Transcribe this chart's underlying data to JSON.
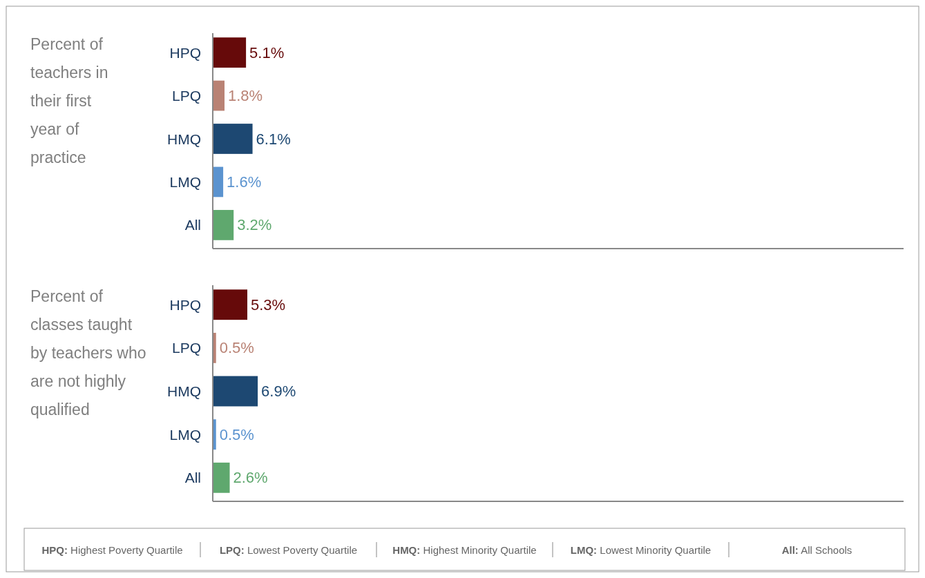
{
  "chart_data": [
    {
      "type": "bar",
      "orientation": "horizontal",
      "title": "Percent of teachers in their first year of practice",
      "categories": [
        "HPQ",
        "LPQ",
        "HMQ",
        "LMQ",
        "All"
      ],
      "values": [
        5.1,
        1.8,
        6.1,
        1.6,
        3.2
      ],
      "colors": [
        "#660a0a",
        "#b98274",
        "#1d4872",
        "#5b93cf",
        "#5fa86e"
      ],
      "value_labels": [
        "5.1%",
        "1.8%",
        "6.1%",
        "1.6%",
        "3.2%"
      ],
      "xlim": [
        0,
        106
      ],
      "tick_labels": "y"
    },
    {
      "type": "bar",
      "orientation": "horizontal",
      "title": "Percent of classes taught by teachers who are not highly qualified",
      "categories": [
        "HPQ",
        "LPQ",
        "HMQ",
        "LMQ",
        "All"
      ],
      "values": [
        5.3,
        0.5,
        6.9,
        0.5,
        2.6
      ],
      "colors": [
        "#660a0a",
        "#b98274",
        "#1d4872",
        "#5b93cf",
        "#5fa86e"
      ],
      "value_labels": [
        "5.3%",
        "0.5%",
        "6.9%",
        "0.5%",
        "2.6%"
      ],
      "xlim": [
        0,
        106
      ],
      "tick_labels": "y",
      "annotations": [
        "HPQ: Highest Poverty Quartile",
        "LPQ: Lowest Poverty Quartile",
        "HMQ: Highest Minority Quartile",
        "LMQ: Lowest Minority Quartile",
        "All: All Schools"
      ]
    }
  ]
}
